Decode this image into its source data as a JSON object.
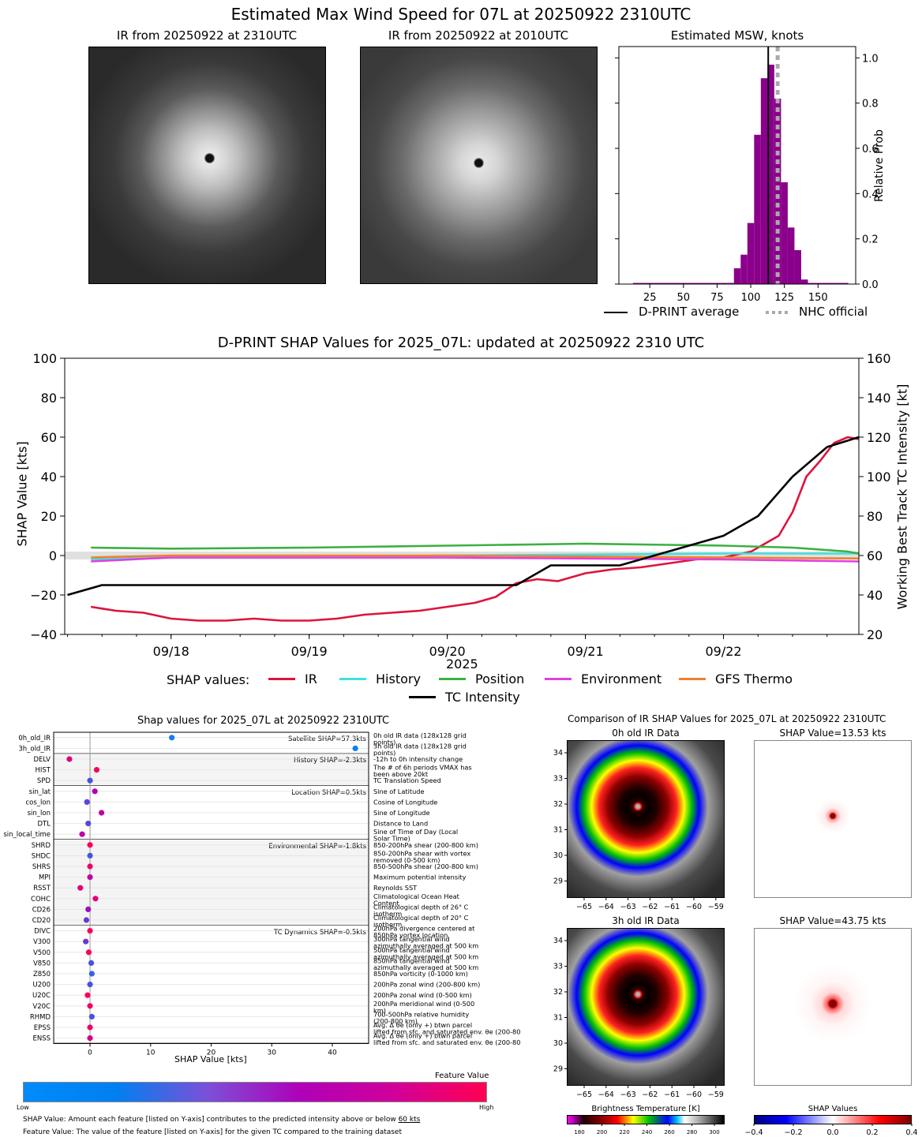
{
  "main_title": "Estimated Max Wind Speed for 07L at 20250922 2310UTC",
  "ir_panels": [
    {
      "title": "IR from 20250922 at 2310UTC"
    },
    {
      "title": "IR from 20250922 at 2010UTC"
    }
  ],
  "msw_hist": {
    "title": "Estimated MSW, knots",
    "ylabel": "Relative Prob",
    "xticks": [
      "25",
      "50",
      "75",
      "100",
      "125",
      "150"
    ],
    "yticks": [
      "0.0",
      "0.2",
      "0.4",
      "0.6",
      "0.8",
      "1.0"
    ],
    "legend": {
      "avg": "D-PRINT average",
      "nhc": "NHC official"
    },
    "colors": {
      "bars": "#8b008b",
      "avg": "#000000",
      "nhc": "#aaaaaa"
    }
  },
  "chart_data": [
    {
      "type": "bar",
      "title": "Estimated MSW, knots",
      "xlabel": "",
      "ylabel": "Relative Prob",
      "xlim": [
        2,
        178
      ],
      "ylim": [
        0,
        1.05
      ],
      "bin_width": 5,
      "bins": [
        15,
        20,
        25,
        30,
        35,
        40,
        45,
        50,
        55,
        60,
        65,
        70,
        75,
        80,
        85,
        90,
        95,
        100,
        105,
        110,
        115,
        120,
        125,
        130,
        135,
        140,
        145,
        150,
        155,
        160,
        165,
        170
      ],
      "values": [
        0.005,
        0.005,
        0.005,
        0.005,
        0.005,
        0.005,
        0.005,
        0.005,
        0.005,
        0.005,
        0.005,
        0.005,
        0.005,
        0.005,
        0.005,
        0.07,
        0.13,
        0.27,
        0.66,
        0.91,
        0.97,
        0.82,
        0.45,
        0.25,
        0.15,
        0.02,
        0.005,
        0.005,
        0.005,
        0.005,
        0.005,
        0.005
      ],
      "dprint_average": 113,
      "nhc_official": 120
    },
    {
      "type": "line",
      "title": "D-PRINT SHAP Values for 2025_07L: updated at 20250922 2310 UTC",
      "xlabel": "2025",
      "ylabel": "SHAP Value [kts]",
      "y2label": "Working Best Track TC Intensity [kt]",
      "xlim": [
        17.23,
        22.98
      ],
      "ylim": [
        -40,
        100
      ],
      "y2lim": [
        20,
        160
      ],
      "xticks": [
        "09/18",
        "09/19",
        "09/20",
        "09/21",
        "09/22"
      ],
      "xtick_values": [
        18,
        19,
        20,
        21,
        22
      ],
      "yticks": [
        "−40",
        "−20",
        "0",
        "20",
        "40",
        "60",
        "80",
        "100"
      ],
      "y2ticks": [
        "20",
        "40",
        "60",
        "80",
        "100",
        "120",
        "140",
        "160"
      ],
      "series": [
        {
          "name": "IR",
          "color": "#dc143c",
          "x": [
            17.42,
            17.6,
            17.8,
            18.0,
            18.2,
            18.4,
            18.6,
            18.8,
            19.0,
            19.2,
            19.4,
            19.6,
            19.8,
            20.0,
            20.2,
            20.35,
            20.5,
            20.65,
            20.8,
            21.0,
            21.2,
            21.4,
            21.6,
            21.8,
            22.0,
            22.2,
            22.4,
            22.5,
            22.6,
            22.7,
            22.8,
            22.9,
            22.98
          ],
          "values": [
            -26,
            -28,
            -29,
            -32,
            -33,
            -33,
            -32,
            -33,
            -33,
            -32,
            -30,
            -29,
            -28,
            -26,
            -24,
            -21,
            -14,
            -12,
            -13,
            -9,
            -7,
            -6,
            -4,
            -2,
            -1,
            2,
            10,
            22,
            40,
            48,
            57,
            60,
            59
          ]
        },
        {
          "name": "History",
          "color": "#40e0e0",
          "x": [
            17.42,
            18,
            19,
            20,
            21,
            22,
            22.98
          ],
          "values": [
            -2,
            -1,
            -1,
            0,
            0.5,
            1,
            1
          ]
        },
        {
          "name": "Position",
          "color": "#3cb043",
          "x": [
            17.42,
            18,
            19,
            20,
            21,
            22,
            22.5,
            22.9,
            22.98
          ],
          "values": [
            4,
            3.5,
            4,
            5,
            6,
            5,
            4,
            2,
            1
          ]
        },
        {
          "name": "Environment",
          "color": "#e040e0",
          "x": [
            17.42,
            18,
            19,
            20,
            21,
            22,
            22.98
          ],
          "values": [
            -3,
            -1,
            -1,
            -1,
            -1.5,
            -2,
            -3
          ]
        },
        {
          "name": "GFS Thermo",
          "color": "#f08030",
          "x": [
            17.42,
            18,
            19,
            20,
            21,
            22,
            22.98
          ],
          "values": [
            -1,
            0,
            0,
            0,
            -0.5,
            -1,
            -1.5
          ]
        },
        {
          "name": "TC Intensity",
          "color": "#000000",
          "axis": "right",
          "x": [
            17.25,
            17.5,
            20.5,
            20.75,
            21.25,
            21.75,
            22.0,
            22.25,
            22.5,
            22.75,
            22.98
          ],
          "values": [
            40,
            45,
            45,
            55,
            55,
            65,
            70,
            80,
            100,
            115,
            120
          ]
        }
      ],
      "legend_title": "SHAP values:"
    },
    {
      "type": "scatter",
      "title": "Shap values for 2025_07L at 20250922 2310UTC",
      "xlabel": "SHAP Value [kts]",
      "xlim": [
        -6,
        46
      ],
      "xticks": [
        "0",
        "10",
        "20",
        "30",
        "40"
      ],
      "xtick_values": [
        0,
        10,
        20,
        30,
        40
      ],
      "groups": [
        {
          "label": "Satellite SHAP=57.3kts",
          "features": [
            {
              "name": "0h_old_IR",
              "desc": "0h old IR data (128x128 grid points)",
              "shap": 13.5,
              "fv": 0.05
            },
            {
              "name": "3h_old_IR",
              "desc": "3h old IR data (128x128 grid points)",
              "shap": 43.8,
              "fv": 0.05
            }
          ]
        },
        {
          "label": "History SHAP=-2.3kts",
          "features": [
            {
              "name": "DELV",
              "desc": "-12h to 0h intensity change",
              "shap": -3.4,
              "fv": 0.78
            },
            {
              "name": "HIST",
              "desc": "The # of 6h periods VMAX has been above 20kt",
              "shap": 1.1,
              "fv": 0.95
            },
            {
              "name": "SPD",
              "desc": "TC Translation Speed",
              "shap": 0.0,
              "fv": 0.2
            }
          ]
        },
        {
          "label": "Location SHAP=0.5kts",
          "features": [
            {
              "name": "sin_lat",
              "desc": "Sine of Latitude",
              "shap": 0.8,
              "fv": 0.5
            },
            {
              "name": "cos_lon",
              "desc": "Cosine of Longitude",
              "shap": -0.5,
              "fv": 0.25
            },
            {
              "name": "sin_lon",
              "desc": "Sine of Longitude",
              "shap": 1.9,
              "fv": 0.6
            },
            {
              "name": "DTL",
              "desc": "Distance to Land",
              "shap": -0.3,
              "fv": 0.25
            },
            {
              "name": "sin_local_time",
              "desc": "Sine of Time of Day (Local Solar Time)",
              "shap": -1.3,
              "fv": 0.55
            }
          ]
        },
        {
          "label": "Environmental SHAP=-1.8kts",
          "features": [
            {
              "name": "SHRD",
              "desc": "850-200hPa shear (200-800 km)",
              "shap": 0.0,
              "fv": 0.95
            },
            {
              "name": "SHDC",
              "desc": "850-200hPa shear with vortex removed (0-500 km)",
              "shap": 0.0,
              "fv": 0.2
            },
            {
              "name": "SHRS",
              "desc": "850-500hPa shear (200-800 km)",
              "shap": 0.0,
              "fv": 0.9
            },
            {
              "name": "MPI",
              "desc": "Maximum potential intensity",
              "shap": 0.0,
              "fv": 0.6
            },
            {
              "name": "RSST",
              "desc": "Reynolds SST",
              "shap": -1.6,
              "fv": 0.85
            },
            {
              "name": "COHC",
              "desc": "Climatological Ocean Heat Content",
              "shap": 0.9,
              "fv": 0.85
            },
            {
              "name": "CD26",
              "desc": "Climatological depth of 26° C isotherm",
              "shap": -0.3,
              "fv": 0.45
            },
            {
              "name": "CD20",
              "desc": "Climatological depth of 20° C isotherm",
              "shap": -0.6,
              "fv": 0.3
            }
          ]
        },
        {
          "label": "TC Dynamics SHAP=-0.5kts",
          "features": [
            {
              "name": "DIVC",
              "desc": "200hPa divergence centered at 850hPa vortex location",
              "shap": 0.0,
              "fv": 0.95
            },
            {
              "name": "V300",
              "desc": "300hPa tangential wind azimuthally averaged at 500 km",
              "shap": -0.7,
              "fv": 0.3
            },
            {
              "name": "V500",
              "desc": "500hPa tangential wind azimuthally averaged at 500 km",
              "shap": -0.2,
              "fv": 0.95
            },
            {
              "name": "V850",
              "desc": "850hPa tangential wind azimuthally averaged at 500 km",
              "shap": 0.2,
              "fv": 0.2
            },
            {
              "name": "Z850",
              "desc": "850hPa vorticity (0-1000 km)",
              "shap": 0.3,
              "fv": 0.15
            },
            {
              "name": "U200",
              "desc": "200hPa zonal wind (200-800 km)",
              "shap": 0.0,
              "fv": 0.2
            },
            {
              "name": "U20C",
              "desc": "200hPa zonal wind (0-500 km)",
              "shap": -0.4,
              "fv": 0.95
            },
            {
              "name": "V20C",
              "desc": "200hPa meridional wind (0-500 km)",
              "shap": 0.0,
              "fv": 0.9
            },
            {
              "name": "RHMD",
              "desc": "700-500hPa relative humidity (200-800 km)",
              "shap": 0.3,
              "fv": 0.2
            },
            {
              "name": "EPSS",
              "desc": "Avg. Δ θe (only +) btwn parcel lifted from sfc. and saturated env. θe (200-800 km)",
              "shap": 0.0,
              "fv": 0.9
            },
            {
              "name": "ENSS",
              "desc": "Avg. Δ θe (only +) btwn parcel lifted from sfc. and saturated env. θe (200-800 km)",
              "shap": 0.0,
              "fv": 0.75
            }
          ]
        }
      ]
    }
  ],
  "shap_legend": {
    "series_labels": [
      "IR",
      "History",
      "Position",
      "Environment",
      "GFS Thermo",
      "TC Intensity"
    ],
    "series_colors": [
      "#dc143c",
      "#40e0e0",
      "#3cb043",
      "#e040e0",
      "#f08030",
      "#000000"
    ]
  },
  "feature_colorbar": {
    "title": "Feature Value",
    "low": "Low",
    "high": "High",
    "low_color": "#008bfb",
    "high_color": "#ff0052"
  },
  "footnotes": {
    "line1_prefix": "SHAP Value: Amount each feature [listed on Y-axis] contributes to the predicted intensity above or below ",
    "line1_underline": "60 kts",
    "line2": "Feature Value: The value of the feature [listed on Y-axis] for the given TC compared to the training dataset"
  },
  "comparison": {
    "title": "Comparison of IR SHAP Values for 2025_07L at 20250922 2310UTC",
    "panels": [
      {
        "title": "0h old IR Data"
      },
      {
        "title": "SHAP Value=13.53 kts"
      },
      {
        "title": "3h old IR Data"
      },
      {
        "title": "SHAP Value=43.75 kts"
      }
    ],
    "lon_ticks": [
      "−65",
      "−64",
      "−63",
      "−62",
      "−61",
      "−60",
      "−59"
    ],
    "lat_ticks": [
      "34",
      "33",
      "32",
      "31",
      "30",
      "29"
    ],
    "bt_colorbar": {
      "title": "Brightness Temperature [K]",
      "ticks": [
        "180",
        "200",
        "220",
        "240",
        "260",
        "280",
        "300"
      ]
    },
    "shap_colorbar": {
      "title": "SHAP Values",
      "ticks": [
        "−0.4",
        "−0.2",
        "0.0",
        "0.2",
        "0.4"
      ]
    }
  }
}
